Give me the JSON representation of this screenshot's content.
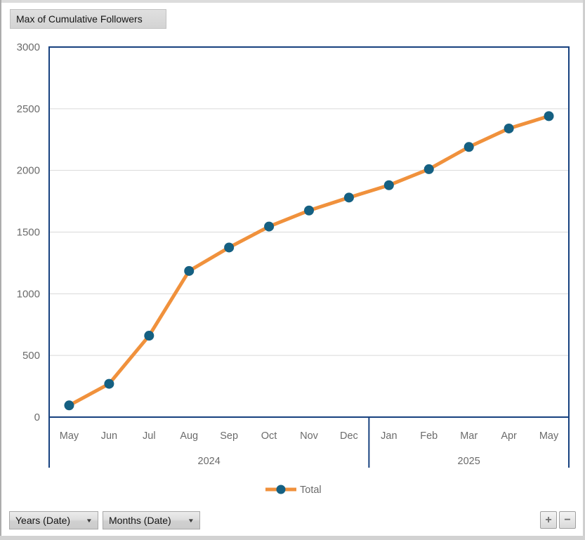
{
  "pivot_field_buttons": {
    "value_field": "Max of Cumulative Followers",
    "axis_fields": [
      "Years (Date)",
      "Months (Date)"
    ],
    "expand_label": "+",
    "collapse_label": "−"
  },
  "chart_data": {
    "type": "line",
    "title": "",
    "xlabel": "",
    "ylabel": "",
    "categories": [
      "May",
      "Jun",
      "Jul",
      "Aug",
      "Sep",
      "Oct",
      "Nov",
      "Dec",
      "Jan",
      "Feb",
      "Mar",
      "Apr",
      "May"
    ],
    "year_groups": [
      {
        "label": "2024",
        "count": 8
      },
      {
        "label": "2025",
        "count": 5
      }
    ],
    "series": [
      {
        "name": "Total",
        "values": [
          95,
          270,
          660,
          1185,
          1375,
          1545,
          1675,
          1780,
          1880,
          2010,
          2190,
          2340,
          2440
        ]
      }
    ],
    "ylim": [
      0,
      3000
    ],
    "yticks": [
      0,
      500,
      1000,
      1500,
      2000,
      2500,
      3000
    ],
    "grid": true,
    "legend_position": "bottom"
  },
  "colors": {
    "series_line": "#F0913C",
    "series_marker": "#156082",
    "axis_line": "#17417F",
    "gridline": "#D9D9D9",
    "tick_label": "#6B6B6B",
    "button_text": "#141414"
  }
}
